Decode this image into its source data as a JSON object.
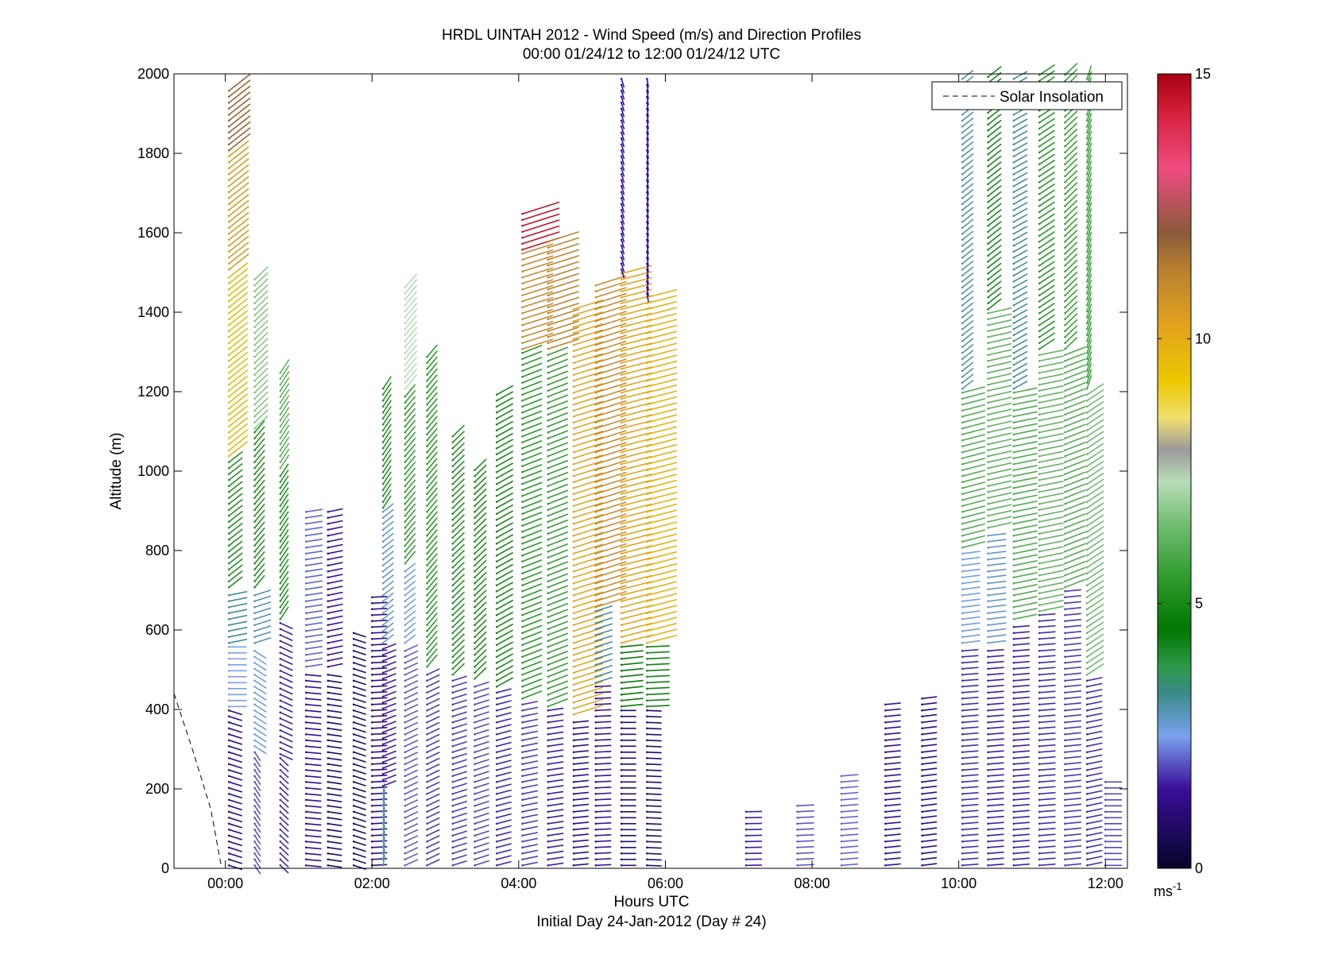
{
  "chart_data": {
    "type": "wind-barb-profile",
    "title": "HRDL UINTAH 2012 - Wind Speed (m/s) and Direction Profiles",
    "subtitle": "00:00 01/24/12 to 12:00 01/24/12  UTC",
    "xlabel": "Hours UTC",
    "xlabel2": "Initial Day 24-Jan-2012 (Day # 24)",
    "ylabel": "Altitude (m)",
    "xlim_hours": [
      -0.7,
      12.3
    ],
    "ylim": [
      0,
      2000
    ],
    "x_ticks": [
      {
        "hour": 0,
        "label": "00:00"
      },
      {
        "hour": 2,
        "label": "02:00"
      },
      {
        "hour": 4,
        "label": "04:00"
      },
      {
        "hour": 6,
        "label": "06:00"
      },
      {
        "hour": 8,
        "label": "08:00"
      },
      {
        "hour": 10,
        "label": "10:00"
      },
      {
        "hour": 12,
        "label": "12:00"
      }
    ],
    "y_ticks": [
      0,
      200,
      400,
      600,
      800,
      1000,
      1200,
      1400,
      1600,
      1800,
      2000
    ],
    "legend": {
      "entries": [
        "Solar Insolation"
      ],
      "placement": "top-right",
      "line_style": "dashed"
    },
    "colorbar": {
      "range": [
        0,
        15
      ],
      "ticks": [
        0,
        5,
        10,
        15
      ],
      "unit_label": "ms",
      "unit_exponent": "-1",
      "stops": [
        {
          "v": 0,
          "color": "#05052a"
        },
        {
          "v": 1.5,
          "color": "#3a0e9a"
        },
        {
          "v": 2.5,
          "color": "#7aa2ec"
        },
        {
          "v": 3.3,
          "color": "#3a8a8a"
        },
        {
          "v": 3.8,
          "color": "#2e9a4a"
        },
        {
          "v": 4.5,
          "color": "#007800"
        },
        {
          "v": 5.5,
          "color": "#2f9b2f"
        },
        {
          "v": 6.5,
          "color": "#72bd72"
        },
        {
          "v": 7.3,
          "color": "#b8deb8"
        },
        {
          "v": 7.9,
          "color": "#9a9a9a"
        },
        {
          "v": 8.5,
          "color": "#f0df70"
        },
        {
          "v": 9.2,
          "color": "#ecc800"
        },
        {
          "v": 10.3,
          "color": "#e2a020"
        },
        {
          "v": 11.3,
          "color": "#b88030"
        },
        {
          "v": 12.0,
          "color": "#8a5a3a"
        },
        {
          "v": 13.2,
          "color": "#ef4c80"
        },
        {
          "v": 14.2,
          "color": "#d82340"
        },
        {
          "v": 15,
          "color": "#a80010"
        }
      ]
    },
    "solar_insolation": [
      {
        "hour": -0.7,
        "alt": 440
      },
      {
        "hour": -0.45,
        "alt": 300
      },
      {
        "hour": -0.2,
        "alt": 150
      },
      {
        "hour": -0.05,
        "alt": 0
      }
    ],
    "profiles": [
      {
        "hour": 0.05,
        "layers": [
          {
            "alt_top": 400,
            "speed": 1.2,
            "dir": 300
          },
          {
            "alt_top": 560,
            "speed": 2.5,
            "dir": 270
          },
          {
            "alt_top": 700,
            "speed": 3.2,
            "dir": 250
          },
          {
            "alt_top": 1030,
            "speed": 5.2,
            "dir": 215
          },
          {
            "alt_top": 1500,
            "speed": 9.6,
            "dir": 215
          },
          {
            "alt_top": 1800,
            "speed": 10.5,
            "dir": 215
          },
          {
            "alt_top": 1970,
            "speed": 11.8,
            "dir": 215
          }
        ]
      },
      {
        "hour": 0.4,
        "layers": [
          {
            "alt_top": 300,
            "speed": 2.0,
            "dir": 340
          },
          {
            "alt_top": 560,
            "speed": 2.6,
            "dir": 320
          },
          {
            "alt_top": 700,
            "speed": 3.0,
            "dir": 240
          },
          {
            "alt_top": 1100,
            "speed": 5.3,
            "dir": 205
          },
          {
            "alt_top": 1490,
            "speed": 6.7,
            "dir": 210
          }
        ]
      },
      {
        "hour": 0.75,
        "layers": [
          {
            "alt_top": 280,
            "speed": 1.7,
            "dir": 330
          },
          {
            "alt_top": 620,
            "speed": 1.6,
            "dir": 310
          },
          {
            "alt_top": 1000,
            "speed": 5.3,
            "dir": 200
          },
          {
            "alt_top": 1250,
            "speed": 6.2,
            "dir": 200
          }
        ]
      },
      {
        "hour": 1.1,
        "layers": [
          {
            "alt_top": 500,
            "speed": 1.4,
            "dir": 280
          },
          {
            "alt_top": 900,
            "speed": 2.1,
            "dir": 255
          }
        ]
      },
      {
        "hour": 1.4,
        "layers": [
          {
            "alt_top": 500,
            "speed": 0.8,
            "dir": 285
          },
          {
            "alt_top": 900,
            "speed": 1.5,
            "dir": 250
          }
        ]
      },
      {
        "hour": 1.75,
        "layers": [
          {
            "alt_top": 600,
            "speed": 0.7,
            "dir": 300
          }
        ]
      },
      {
        "hour": 2.0,
        "layers": [
          {
            "alt_top": 690,
            "speed": 1.2,
            "dir": 265
          }
        ]
      },
      {
        "hour": 2.15,
        "layers": [
          {
            "alt_top": 200,
            "speed": 3.0,
            "dir": 185
          },
          {
            "alt_top": 560,
            "speed": 1.6,
            "dir": 235
          },
          {
            "alt_top": 900,
            "speed": 2.8,
            "dir": 215
          },
          {
            "alt_top": 1210,
            "speed": 5.3,
            "dir": 200
          }
        ]
      },
      {
        "hour": 2.45,
        "layers": [
          {
            "alt_top": 560,
            "speed": 2.0,
            "dir": 230
          },
          {
            "alt_top": 760,
            "speed": 2.6,
            "dir": 215
          },
          {
            "alt_top": 1200,
            "speed": 5.6,
            "dir": 205
          },
          {
            "alt_top": 1470,
            "speed": 7.3,
            "dir": 205
          }
        ]
      },
      {
        "hour": 2.75,
        "layers": [
          {
            "alt_top": 500,
            "speed": 1.8,
            "dir": 230
          },
          {
            "alt_top": 1300,
            "speed": 5.5,
            "dir": 205
          }
        ]
      },
      {
        "hour": 3.1,
        "layers": [
          {
            "alt_top": 480,
            "speed": 1.8,
            "dir": 240
          },
          {
            "alt_top": 1090,
            "speed": 5.2,
            "dir": 210
          }
        ]
      },
      {
        "hour": 3.4,
        "layers": [
          {
            "alt_top": 470,
            "speed": 1.9,
            "dir": 240
          },
          {
            "alt_top": 1010,
            "speed": 5.1,
            "dir": 210
          }
        ]
      },
      {
        "hour": 3.7,
        "layers": [
          {
            "alt_top": 450,
            "speed": 1.7,
            "dir": 245
          },
          {
            "alt_top": 1200,
            "speed": 5.0,
            "dir": 225
          }
        ]
      },
      {
        "hour": 4.05,
        "layers": [
          {
            "alt_top": 420,
            "speed": 1.8,
            "dir": 250
          },
          {
            "alt_top": 1300,
            "speed": 5.4,
            "dir": 235
          },
          {
            "alt_top": 1550,
            "speed": 11.0,
            "dir": 240
          },
          {
            "alt_top": 1660,
            "speed": 14.6,
            "dir": 240
          }
        ]
      },
      {
        "hour": 4.4,
        "layers": [
          {
            "alt_top": 400,
            "speed": 1.6,
            "dir": 255
          },
          {
            "alt_top": 1300,
            "speed": 5.6,
            "dir": 235
          },
          {
            "alt_top": 1580,
            "speed": 11.2,
            "dir": 240
          }
        ]
      },
      {
        "hour": 4.75,
        "layers": [
          {
            "alt_top": 380,
            "speed": 1.2,
            "dir": 260
          },
          {
            "alt_top": 1420,
            "speed": 10.2,
            "dir": 240
          }
        ]
      },
      {
        "hour": 5.05,
        "layers": [
          {
            "alt_top": 460,
            "speed": 1.4,
            "dir": 265
          },
          {
            "alt_top": 650,
            "speed": 3.2,
            "dir": 240
          },
          {
            "alt_top": 1470,
            "speed": 11.0,
            "dir": 240
          }
        ]
      },
      {
        "hour": 5.4,
        "layers": [
          {
            "alt_top": 400,
            "speed": 1.0,
            "dir": 270
          },
          {
            "alt_top": 560,
            "speed": 4.6,
            "dir": 260
          },
          {
            "alt_top": 1500,
            "speed": 10.2,
            "dir": 245
          },
          {
            "alt_top": 2000,
            "speed": 1.5,
            "dir": 350
          }
        ]
      },
      {
        "hour": 5.75,
        "layers": [
          {
            "alt_top": 400,
            "speed": 0.9,
            "dir": 275
          },
          {
            "alt_top": 560,
            "speed": 4.8,
            "dir": 265
          },
          {
            "alt_top": 1440,
            "speed": 9.8,
            "dir": 245
          },
          {
            "alt_top": 2000,
            "speed": 1.4,
            "dir": 355
          }
        ]
      },
      {
        "hour": 7.1,
        "layers": [
          {
            "alt_top": 150,
            "speed": 1.6,
            "dir": 268
          }
        ]
      },
      {
        "hour": 7.8,
        "layers": [
          {
            "alt_top": 170,
            "speed": 2.0,
            "dir": 265
          }
        ]
      },
      {
        "hour": 8.4,
        "layers": [
          {
            "alt_top": 240,
            "speed": 2.1,
            "dir": 262
          }
        ]
      },
      {
        "hour": 9.0,
        "layers": [
          {
            "alt_top": 420,
            "speed": 1.4,
            "dir": 260
          }
        ]
      },
      {
        "hour": 9.5,
        "layers": [
          {
            "alt_top": 430,
            "speed": 1.2,
            "dir": 258
          }
        ]
      },
      {
        "hour": 10.05,
        "layers": [
          {
            "alt_top": 560,
            "speed": 1.7,
            "dir": 262
          },
          {
            "alt_top": 800,
            "speed": 2.6,
            "dir": 258
          },
          {
            "alt_top": 1200,
            "speed": 6.0,
            "dir": 245
          },
          {
            "alt_top": 2000,
            "speed": 3.0,
            "dir": 215
          }
        ]
      },
      {
        "hour": 10.4,
        "layers": [
          {
            "alt_top": 560,
            "speed": 1.6,
            "dir": 262
          },
          {
            "alt_top": 850,
            "speed": 2.8,
            "dir": 258
          },
          {
            "alt_top": 1400,
            "speed": 6.2,
            "dir": 248
          },
          {
            "alt_top": 2000,
            "speed": 5.0,
            "dir": 215
          }
        ]
      },
      {
        "hour": 10.75,
        "layers": [
          {
            "alt_top": 620,
            "speed": 1.6,
            "dir": 262
          },
          {
            "alt_top": 1200,
            "speed": 6.0,
            "dir": 250
          },
          {
            "alt_top": 2000,
            "speed": 3.2,
            "dir": 225
          }
        ]
      },
      {
        "hour": 11.1,
        "layers": [
          {
            "alt_top": 640,
            "speed": 1.7,
            "dir": 262
          },
          {
            "alt_top": 1300,
            "speed": 6.3,
            "dir": 250
          },
          {
            "alt_top": 2000,
            "speed": 5.4,
            "dir": 220
          }
        ]
      },
      {
        "hour": 11.45,
        "layers": [
          {
            "alt_top": 700,
            "speed": 1.8,
            "dir": 260
          },
          {
            "alt_top": 1300,
            "speed": 6.0,
            "dir": 235
          },
          {
            "alt_top": 2000,
            "speed": 5.6,
            "dir": 210
          }
        ]
      },
      {
        "hour": 11.75,
        "layers": [
          {
            "alt_top": 480,
            "speed": 1.7,
            "dir": 250
          },
          {
            "alt_top": 1200,
            "speed": 6.4,
            "dir": 220
          },
          {
            "alt_top": 2000,
            "speed": 5.8,
            "dir": 190
          }
        ]
      },
      {
        "hour": 12.0,
        "layers": [
          {
            "alt_top": 230,
            "speed": 1.9,
            "dir": 270
          }
        ]
      }
    ]
  }
}
